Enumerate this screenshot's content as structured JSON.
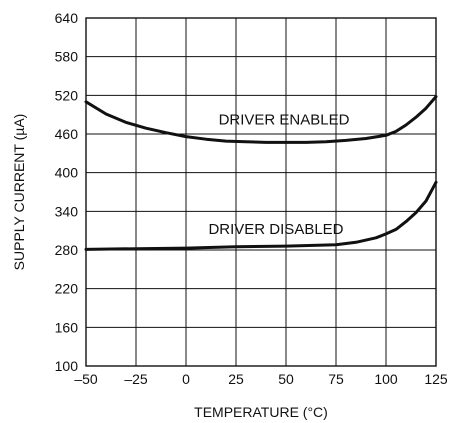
{
  "chart_data": {
    "type": "line",
    "xlabel": "TEMPERATURE (°C)",
    "ylabel": "SUPPLY CURRENT (µA)",
    "xlim": [
      -50,
      125
    ],
    "ylim": [
      100,
      640
    ],
    "xticks": [
      -50,
      -25,
      0,
      25,
      50,
      75,
      100,
      125
    ],
    "xtick_labels": [
      "–50",
      "–25",
      "0",
      "25",
      "50",
      "75",
      "100",
      "125"
    ],
    "yticks": [
      100,
      160,
      220,
      280,
      340,
      400,
      460,
      520,
      580,
      640
    ],
    "grid": true,
    "series": [
      {
        "name": "DRIVER ENABLED",
        "x": [
          -50,
          -40,
          -30,
          -20,
          -10,
          0,
          10,
          20,
          30,
          40,
          50,
          60,
          70,
          80,
          90,
          100,
          105,
          110,
          115,
          120,
          125
        ],
        "y": [
          510,
          491,
          478,
          469,
          462,
          456,
          452,
          449,
          448,
          447,
          447,
          447,
          448,
          450,
          453,
          458,
          464,
          474,
          486,
          500,
          518
        ]
      },
      {
        "name": "DRIVER DISABLED",
        "x": [
          -50,
          -25,
          0,
          25,
          50,
          75,
          85,
          95,
          100,
          105,
          110,
          115,
          120,
          125
        ],
        "y": [
          281,
          282,
          283,
          285,
          286,
          288,
          292,
          299,
          305,
          312,
          324,
          338,
          356,
          385
        ]
      }
    ],
    "annotations": [
      {
        "text": "DRIVER ENABLED",
        "x": 49,
        "y": 475
      },
      {
        "text": "DRIVER DISABLED",
        "x": 45,
        "y": 305
      }
    ]
  }
}
